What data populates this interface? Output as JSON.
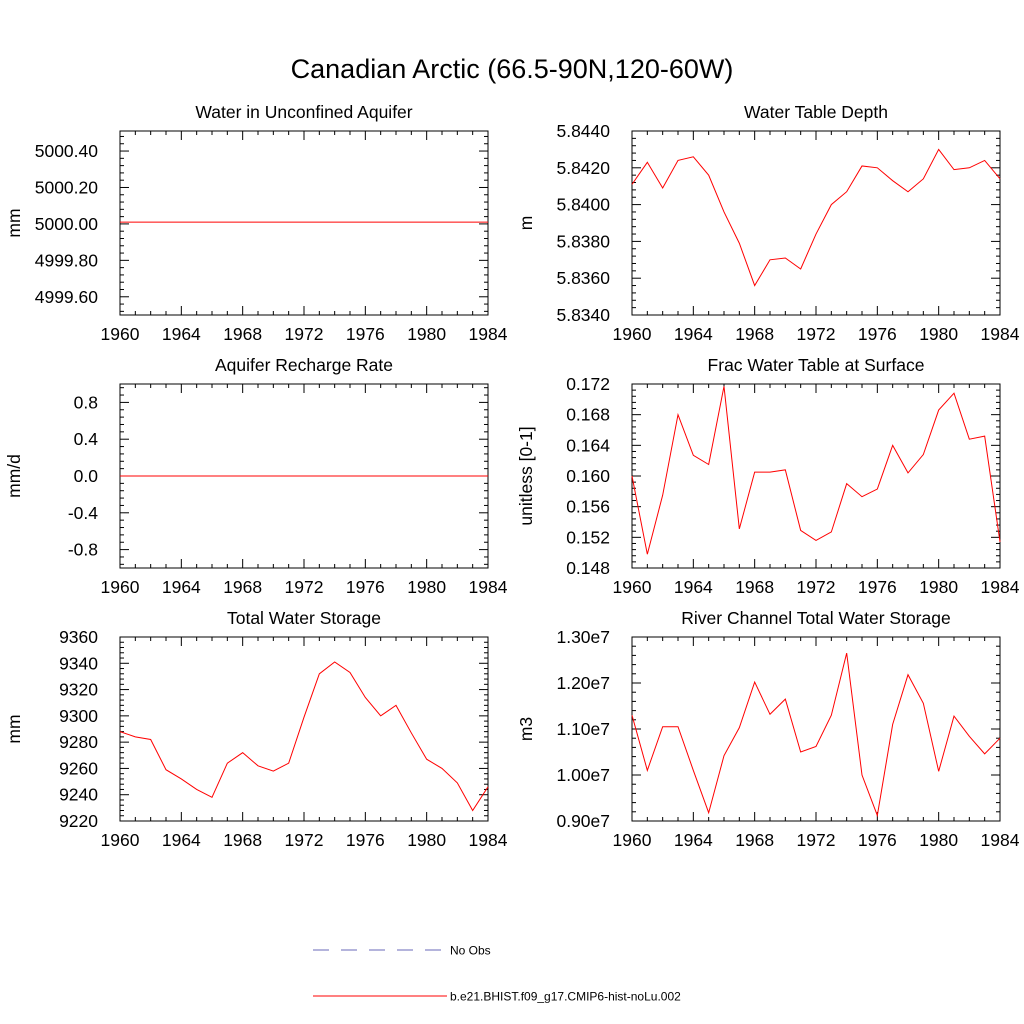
{
  "title": "Canadian Arctic (66.5-90N,120-60W)",
  "colors": {
    "model": "#ff0000",
    "obs": "#6a6ab8",
    "axis": "#000000"
  },
  "legend": {
    "obs_label": "No Obs",
    "model_label": "b.e21.BHIST.f09_g17.CMIP6-hist-noLu.002"
  },
  "chart_data": [
    {
      "type": "line",
      "title": "Water in Unconfined Aquifer",
      "ylabel": "mm",
      "xlim": [
        1960,
        1984
      ],
      "ylim": [
        4999.5,
        5000.51
      ],
      "x_ticks": [
        1960,
        1964,
        1968,
        1972,
        1976,
        1980,
        1984
      ],
      "x_tick_labels": [
        "1960",
        "1964",
        "1968",
        "1972",
        "1976",
        "1980",
        "1984"
      ],
      "y_ticks": [
        4999.6,
        4999.8,
        5000.0,
        5000.2,
        5000.4
      ],
      "y_tick_labels": [
        "4999.60",
        "4999.80",
        "5000.00",
        "5000.20",
        "5000.40"
      ],
      "x": [
        1960,
        1961,
        1962,
        1963,
        1964,
        1965,
        1966,
        1967,
        1968,
        1969,
        1970,
        1971,
        1972,
        1973,
        1974,
        1975,
        1976,
        1977,
        1978,
        1979,
        1980,
        1981,
        1982,
        1983,
        1984
      ],
      "series": [
        {
          "values": [
            5000.01,
            5000.01,
            5000.01,
            5000.01,
            5000.01,
            5000.01,
            5000.01,
            5000.01,
            5000.01,
            5000.01,
            5000.01,
            5000.01,
            5000.01,
            5000.01,
            5000.01,
            5000.01,
            5000.01,
            5000.01,
            5000.01,
            5000.01,
            5000.01,
            5000.01,
            5000.01,
            5000.01,
            5000.01
          ]
        }
      ]
    },
    {
      "type": "line",
      "title": "Water Table Depth",
      "ylabel": "m",
      "xlim": [
        1960,
        1984
      ],
      "ylim": [
        5.834,
        5.844
      ],
      "x_ticks": [
        1960,
        1964,
        1968,
        1972,
        1976,
        1980,
        1984
      ],
      "x_tick_labels": [
        "1960",
        "1964",
        "1968",
        "1972",
        "1976",
        "1980",
        "1984"
      ],
      "y_ticks": [
        5.834,
        5.836,
        5.838,
        5.84,
        5.842,
        5.844
      ],
      "y_tick_labels": [
        "5.8340",
        "5.8360",
        "5.8380",
        "5.8400",
        "5.8420",
        "5.8440"
      ],
      "x": [
        1960,
        1961,
        1962,
        1963,
        1964,
        1965,
        1966,
        1967,
        1968,
        1969,
        1970,
        1971,
        1972,
        1973,
        1974,
        1975,
        1976,
        1977,
        1978,
        1979,
        1980,
        1981,
        1982,
        1983,
        1984
      ],
      "series": [
        {
          "values": [
            5.8411,
            5.8423,
            5.8409,
            5.8424,
            5.8426,
            5.8416,
            5.8396,
            5.8379,
            5.8356,
            5.837,
            5.8371,
            5.8365,
            5.8384,
            5.84,
            5.8407,
            5.8421,
            5.842,
            5.8413,
            5.8407,
            5.8414,
            5.843,
            5.8419,
            5.842,
            5.8424,
            5.8414
          ]
        }
      ]
    },
    {
      "type": "line",
      "title": "Aquifer Recharge Rate",
      "ylabel": "mm/d",
      "xlim": [
        1960,
        1984
      ],
      "ylim": [
        -1.0,
        1.0
      ],
      "x_ticks": [
        1960,
        1964,
        1968,
        1972,
        1976,
        1980,
        1984
      ],
      "x_tick_labels": [
        "1960",
        "1964",
        "1968",
        "1972",
        "1976",
        "1980",
        "1984"
      ],
      "y_ticks": [
        -0.8,
        -0.4,
        0.0,
        0.4,
        0.8
      ],
      "y_tick_labels": [
        "-0.8",
        "-0.4",
        "0.0",
        "0.4",
        "0.8"
      ],
      "x": [
        1960,
        1961,
        1962,
        1963,
        1964,
        1965,
        1966,
        1967,
        1968,
        1969,
        1970,
        1971,
        1972,
        1973,
        1974,
        1975,
        1976,
        1977,
        1978,
        1979,
        1980,
        1981,
        1982,
        1983,
        1984
      ],
      "series": [
        {
          "values": [
            0,
            0,
            0,
            0,
            0,
            0,
            0,
            0,
            0,
            0,
            0,
            0,
            0,
            0,
            0,
            0,
            0,
            0,
            0,
            0,
            0,
            0,
            0,
            0,
            0
          ]
        }
      ]
    },
    {
      "type": "line",
      "title": "Frac Water Table at Surface",
      "ylabel": "unitless [0-1]",
      "xlim": [
        1960,
        1984
      ],
      "ylim": [
        0.148,
        0.172
      ],
      "x_ticks": [
        1960,
        1964,
        1968,
        1972,
        1976,
        1980,
        1984
      ],
      "x_tick_labels": [
        "1960",
        "1964",
        "1968",
        "1972",
        "1976",
        "1980",
        "1984"
      ],
      "y_ticks": [
        0.148,
        0.152,
        0.156,
        0.16,
        0.164,
        0.168,
        0.172
      ],
      "y_tick_labels": [
        "0.148",
        "0.152",
        "0.156",
        "0.160",
        "0.164",
        "0.168",
        "0.172"
      ],
      "x": [
        1960,
        1961,
        1962,
        1963,
        1964,
        1965,
        1966,
        1967,
        1968,
        1969,
        1970,
        1971,
        1972,
        1973,
        1974,
        1975,
        1976,
        1977,
        1978,
        1979,
        1980,
        1981,
        1982,
        1983,
        1984
      ],
      "series": [
        {
          "values": [
            0.16,
            0.1498,
            0.1575,
            0.168,
            0.1627,
            0.1615,
            0.1717,
            0.1531,
            0.1605,
            0.1605,
            0.1608,
            0.1529,
            0.1516,
            0.1527,
            0.159,
            0.1573,
            0.1583,
            0.164,
            0.1604,
            0.1628,
            0.1686,
            0.1708,
            0.1648,
            0.1652,
            0.1514
          ]
        }
      ]
    },
    {
      "type": "line",
      "title": "Total Water Storage",
      "ylabel": "mm",
      "xlim": [
        1960,
        1984
      ],
      "ylim": [
        9220,
        9360
      ],
      "x_ticks": [
        1960,
        1964,
        1968,
        1972,
        1976,
        1980,
        1984
      ],
      "x_tick_labels": [
        "1960",
        "1964",
        "1968",
        "1972",
        "1976",
        "1980",
        "1984"
      ],
      "y_ticks": [
        9220,
        9240,
        9260,
        9280,
        9300,
        9320,
        9340,
        9360
      ],
      "y_tick_labels": [
        "9220",
        "9240",
        "9260",
        "9280",
        "9300",
        "9320",
        "9340",
        "9360"
      ],
      "x": [
        1960,
        1961,
        1962,
        1963,
        1964,
        1965,
        1966,
        1967,
        1968,
        1969,
        1970,
        1971,
        1972,
        1973,
        1974,
        1975,
        1976,
        1977,
        1978,
        1979,
        1980,
        1981,
        1982,
        1983,
        1984
      ],
      "series": [
        {
          "values": [
            9288,
            9284,
            9282,
            9259,
            9252,
            9244,
            9238,
            9264,
            9272,
            9262,
            9258,
            9264,
            9299,
            9332,
            9341,
            9333,
            9314,
            9300,
            9308,
            9287,
            9267,
            9260,
            9249,
            9228,
            9246
          ]
        }
      ]
    },
    {
      "type": "line",
      "title": "River Channel Total Water Storage",
      "ylabel": "m3",
      "xlim": [
        1960,
        1984
      ],
      "ylim": [
        9000000,
        13000000
      ],
      "x_ticks": [
        1960,
        1964,
        1968,
        1972,
        1976,
        1980,
        1984
      ],
      "x_tick_labels": [
        "1960",
        "1964",
        "1968",
        "1972",
        "1976",
        "1980",
        "1984"
      ],
      "y_ticks": [
        9000000,
        10000000,
        11000000,
        12000000,
        13000000
      ],
      "y_tick_labels": [
        "0.90e7",
        "1.00e7",
        "1.10e7",
        "1.20e7",
        "1.30e7"
      ],
      "x": [
        1960,
        1961,
        1962,
        1963,
        1964,
        1965,
        1966,
        1967,
        1968,
        1969,
        1970,
        1971,
        1972,
        1973,
        1974,
        1975,
        1976,
        1977,
        1978,
        1979,
        1980,
        1981,
        1982,
        1983,
        1984
      ],
      "series": [
        {
          "values": [
            11300000,
            10100000,
            11050000,
            11050000,
            10100000,
            9180000,
            10420000,
            11030000,
            12020000,
            11320000,
            11650000,
            10500000,
            10620000,
            11300000,
            12650000,
            10000000,
            9120000,
            11100000,
            12180000,
            11560000,
            10080000,
            11280000,
            10840000,
            10460000,
            10800000
          ]
        }
      ]
    }
  ]
}
